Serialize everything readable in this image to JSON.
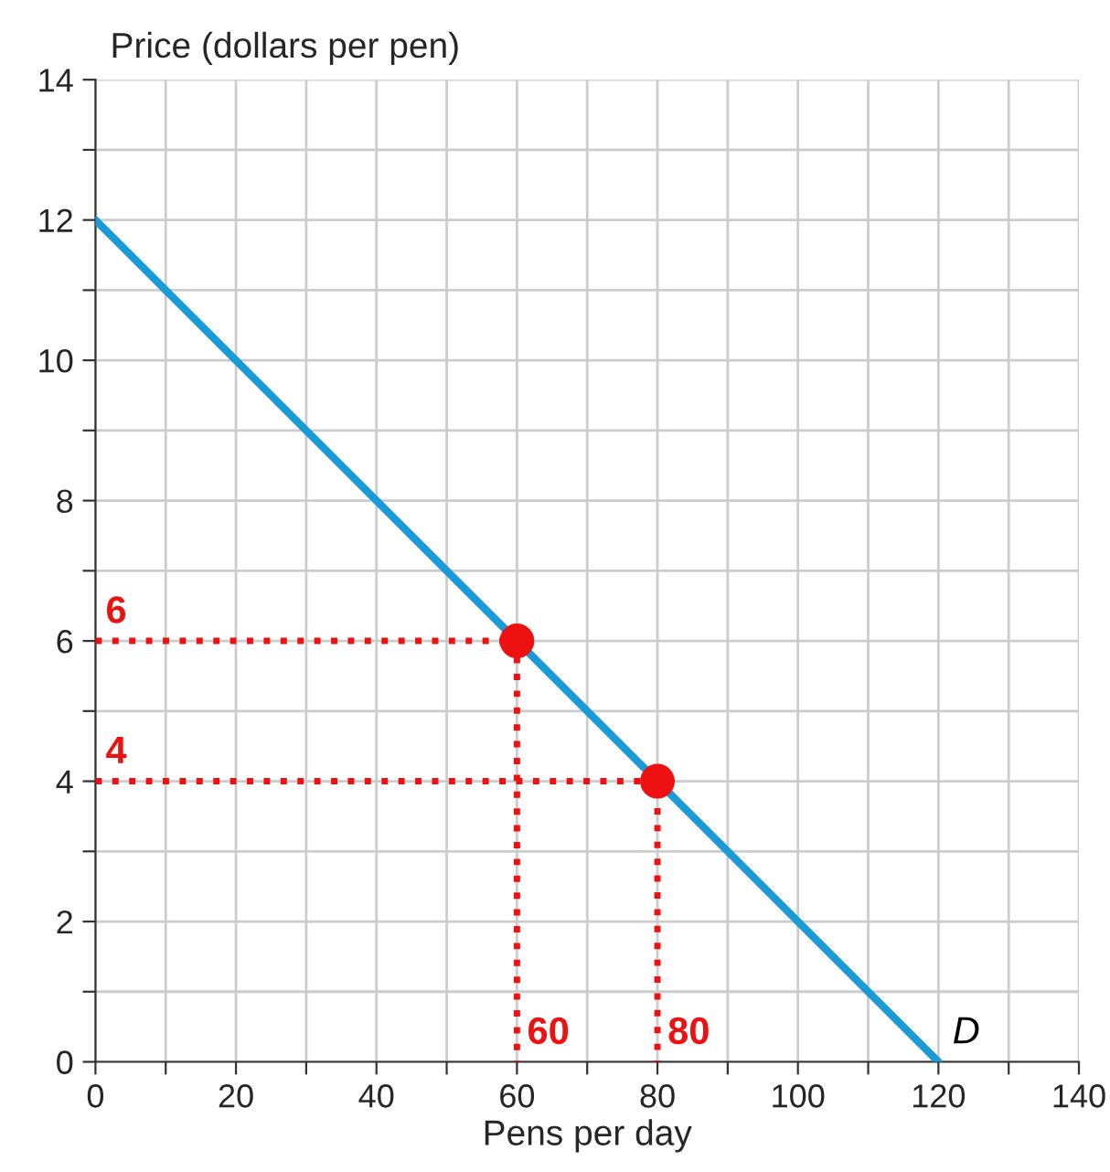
{
  "chart_data": {
    "type": "line",
    "xlabel": "Pens per day",
    "ylabel": "Price (dollars per pen)",
    "xlim": [
      0,
      140
    ],
    "ylim": [
      0,
      14
    ],
    "xticks": [
      0,
      {
        "value": 10,
        "label": null
      },
      20,
      {
        "value": 30,
        "label": null
      },
      40,
      {
        "value": 50,
        "label": null
      },
      60,
      {
        "value": 70,
        "label": null
      },
      80,
      {
        "value": 90,
        "label": null
      },
      100,
      {
        "value": 110,
        "label": null
      },
      120,
      {
        "value": 130,
        "label": null
      },
      140
    ],
    "yticks": [
      0,
      {
        "value": 1,
        "label": null
      },
      2,
      {
        "value": 3,
        "label": null
      },
      4,
      {
        "value": 5,
        "label": null
      },
      6,
      {
        "value": 7,
        "label": null
      },
      8,
      {
        "value": 9,
        "label": null
      },
      10,
      {
        "value": 11,
        "label": null
      },
      12,
      {
        "value": 13,
        "label": null
      },
      14
    ],
    "grid": true,
    "series": [
      {
        "line_style": "dotted",
        "color": "#ee1111",
        "x": [
          0,
          60,
          60
        ],
        "values": [
          6,
          6,
          0
        ]
      },
      {
        "line_style": "dotted",
        "color": "#ee1111",
        "x": [
          0,
          80,
          80
        ],
        "values": [
          4,
          4,
          0
        ]
      },
      {
        "name": "D",
        "line_style": "solid",
        "color": "#1a9bd7",
        "x": [
          0,
          120
        ],
        "values": [
          12,
          0
        ]
      },
      {
        "type": "scatter",
        "marker": "circle",
        "color": "#ee1111",
        "x": [
          60,
          80
        ],
        "values": [
          6,
          4
        ]
      }
    ],
    "annotations": [
      {
        "text": "6",
        "x": 0,
        "y": 6
      },
      {
        "text": "4",
        "x": 0,
        "y": 4
      },
      {
        "text": "60",
        "x": 60,
        "y": 0
      },
      {
        "text": "80",
        "x": 80,
        "y": 0
      }
    ]
  }
}
